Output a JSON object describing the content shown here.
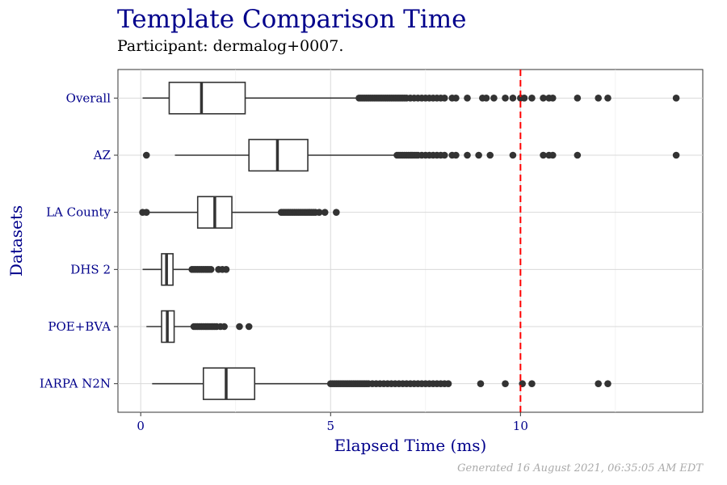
{
  "title": "Template Comparison Time",
  "subtitle": "Participant: dermalog+0007.",
  "caption": "Generated 16 August 2021, 06:35:05 AM EDT",
  "colors": {
    "title": "#00008B",
    "reference_line": "#FF0000",
    "points": "#333333",
    "grid": "#d9d9d9"
  },
  "chart_data": {
    "type": "boxplot",
    "orientation": "horizontal",
    "xlabel": "Elapsed Time (ms)",
    "ylabel": "Datasets",
    "xlim": [
      -0.6,
      14.8
    ],
    "xticks": [
      0,
      5,
      10
    ],
    "grid": true,
    "reference_line": {
      "x": 10,
      "style": "dashed",
      "color": "#FF0000"
    },
    "series": [
      {
        "category": "Overall",
        "whisker_low": 0.05,
        "q1": 0.75,
        "median": 1.6,
        "q3": 2.75,
        "whisker_high": 5.7,
        "outliers": [
          5.75,
          5.8,
          5.85,
          5.9,
          5.95,
          6.0,
          6.05,
          6.1,
          6.15,
          6.2,
          6.25,
          6.3,
          6.35,
          6.4,
          6.45,
          6.5,
          6.55,
          6.6,
          6.65,
          6.7,
          6.75,
          6.8,
          6.85,
          6.9,
          6.95,
          7.0,
          7.1,
          7.2,
          7.3,
          7.4,
          7.5,
          7.6,
          7.7,
          7.8,
          7.9,
          8.0,
          8.2,
          8.3,
          8.6,
          9.0,
          9.1,
          9.3,
          9.6,
          9.8,
          10.0,
          10.1,
          10.3,
          10.6,
          10.75,
          10.85,
          11.5,
          12.05,
          12.3,
          14.1
        ]
      },
      {
        "category": "AZ",
        "whisker_low": 0.9,
        "q1": 2.85,
        "median": 3.6,
        "q3": 4.4,
        "whisker_high": 6.7,
        "outliers": [
          0.15,
          6.75,
          6.8,
          6.85,
          6.9,
          6.95,
          7.0,
          7.05,
          7.1,
          7.15,
          7.2,
          7.25,
          7.3,
          7.4,
          7.5,
          7.6,
          7.7,
          7.8,
          7.9,
          8.0,
          8.2,
          8.3,
          8.6,
          8.9,
          9.2,
          9.8,
          10.6,
          10.75,
          10.85,
          11.5,
          14.1
        ]
      },
      {
        "category": "LA County",
        "whisker_low": 0.15,
        "q1": 1.5,
        "median": 1.95,
        "q3": 2.4,
        "whisker_high": 3.65,
        "outliers": [
          0.05,
          0.15,
          3.7,
          3.75,
          3.8,
          3.85,
          3.9,
          3.95,
          4.0,
          4.05,
          4.1,
          4.15,
          4.2,
          4.25,
          4.3,
          4.35,
          4.4,
          4.45,
          4.5,
          4.55,
          4.6,
          4.7,
          4.85,
          5.15
        ]
      },
      {
        "category": "DHS 2",
        "whisker_low": 0.05,
        "q1": 0.55,
        "median": 0.68,
        "q3": 0.85,
        "whisker_high": 1.3,
        "outliers": [
          1.35,
          1.4,
          1.45,
          1.5,
          1.55,
          1.6,
          1.65,
          1.7,
          1.75,
          1.8,
          1.85,
          2.05,
          2.15,
          2.25
        ]
      },
      {
        "category": "POE+BVA",
        "whisker_low": 0.15,
        "q1": 0.55,
        "median": 0.7,
        "q3": 0.88,
        "whisker_high": 1.35,
        "outliers": [
          1.4,
          1.45,
          1.5,
          1.55,
          1.6,
          1.65,
          1.7,
          1.75,
          1.8,
          1.85,
          1.9,
          1.95,
          2.0,
          2.1,
          2.2,
          2.6,
          2.85
        ]
      },
      {
        "category": "IARPA N2N",
        "whisker_low": 0.3,
        "q1": 1.65,
        "median": 2.25,
        "q3": 3.0,
        "whisker_high": 4.95,
        "outliers": [
          5.0,
          5.05,
          5.1,
          5.15,
          5.2,
          5.25,
          5.3,
          5.35,
          5.4,
          5.45,
          5.5,
          5.55,
          5.6,
          5.65,
          5.7,
          5.75,
          5.8,
          5.85,
          5.9,
          5.95,
          6.0,
          6.1,
          6.2,
          6.3,
          6.4,
          6.5,
          6.6,
          6.7,
          6.8,
          6.9,
          7.0,
          7.1,
          7.2,
          7.3,
          7.4,
          7.5,
          7.6,
          7.7,
          7.8,
          7.9,
          8.0,
          8.1,
          8.95,
          9.6,
          10.05,
          10.3,
          12.05,
          12.3
        ]
      }
    ]
  }
}
